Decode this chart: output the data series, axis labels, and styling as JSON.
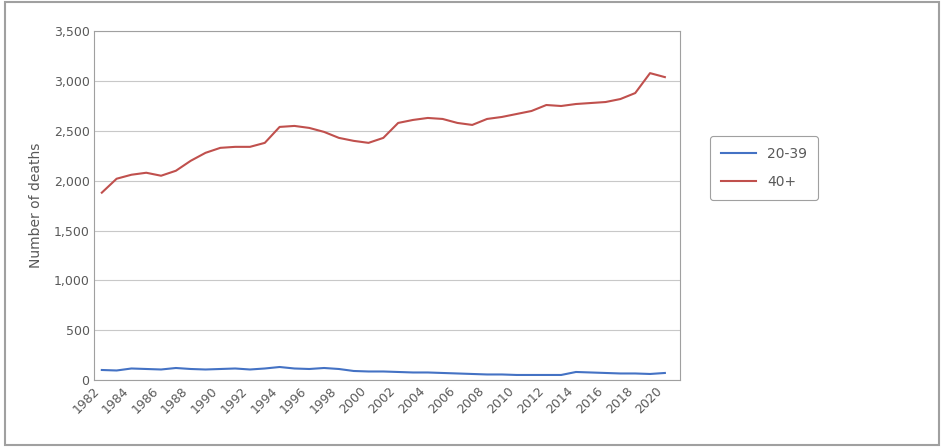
{
  "years": [
    1982,
    1983,
    1984,
    1985,
    1986,
    1987,
    1988,
    1989,
    1990,
    1991,
    1992,
    1993,
    1994,
    1995,
    1996,
    1997,
    1998,
    1999,
    2000,
    2001,
    2002,
    2003,
    2004,
    2005,
    2006,
    2007,
    2008,
    2009,
    2010,
    2011,
    2012,
    2013,
    2014,
    2015,
    2016,
    2017,
    2018,
    2019,
    2020
  ],
  "age_20_39": [
    100,
    95,
    115,
    110,
    105,
    120,
    110,
    105,
    110,
    115,
    105,
    115,
    130,
    115,
    110,
    120,
    110,
    90,
    85,
    85,
    80,
    75,
    75,
    70,
    65,
    60,
    55,
    55,
    50,
    50,
    50,
    50,
    80,
    75,
    70,
    65,
    65,
    60,
    70
  ],
  "age_40_plus": [
    1880,
    2020,
    2060,
    2080,
    2050,
    2100,
    2200,
    2280,
    2330,
    2340,
    2340,
    2380,
    2540,
    2550,
    2530,
    2490,
    2430,
    2400,
    2380,
    2430,
    2580,
    2610,
    2630,
    2620,
    2580,
    2560,
    2620,
    2640,
    2670,
    2700,
    2760,
    2750,
    2770,
    2780,
    2790,
    2820,
    2880,
    3080,
    3040
  ],
  "line_color_20_39": "#4472C4",
  "line_color_40_plus": "#C0504D",
  "ylabel": "Number of deaths",
  "ylim": [
    0,
    3500
  ],
  "yticks": [
    0,
    500,
    1000,
    1500,
    2000,
    2500,
    3000,
    3500
  ],
  "xtick_labels": [
    "1982",
    "1984",
    "1986",
    "1988",
    "1990",
    "1992",
    "1994",
    "1996",
    "1998",
    "2000",
    "2002",
    "2004",
    "2006",
    "2008",
    "2010",
    "2012",
    "2014",
    "2016",
    "2018",
    "2020"
  ],
  "legend_labels": [
    "20-39",
    "40+"
  ],
  "background_color": "#ffffff",
  "grid_color": "#c8c8c8",
  "border_color": "#a0a0a0",
  "outer_border_color": "#a0a0a0",
  "tick_label_color": "#595959",
  "ylabel_color": "#595959",
  "legend_text_color": "#595959"
}
